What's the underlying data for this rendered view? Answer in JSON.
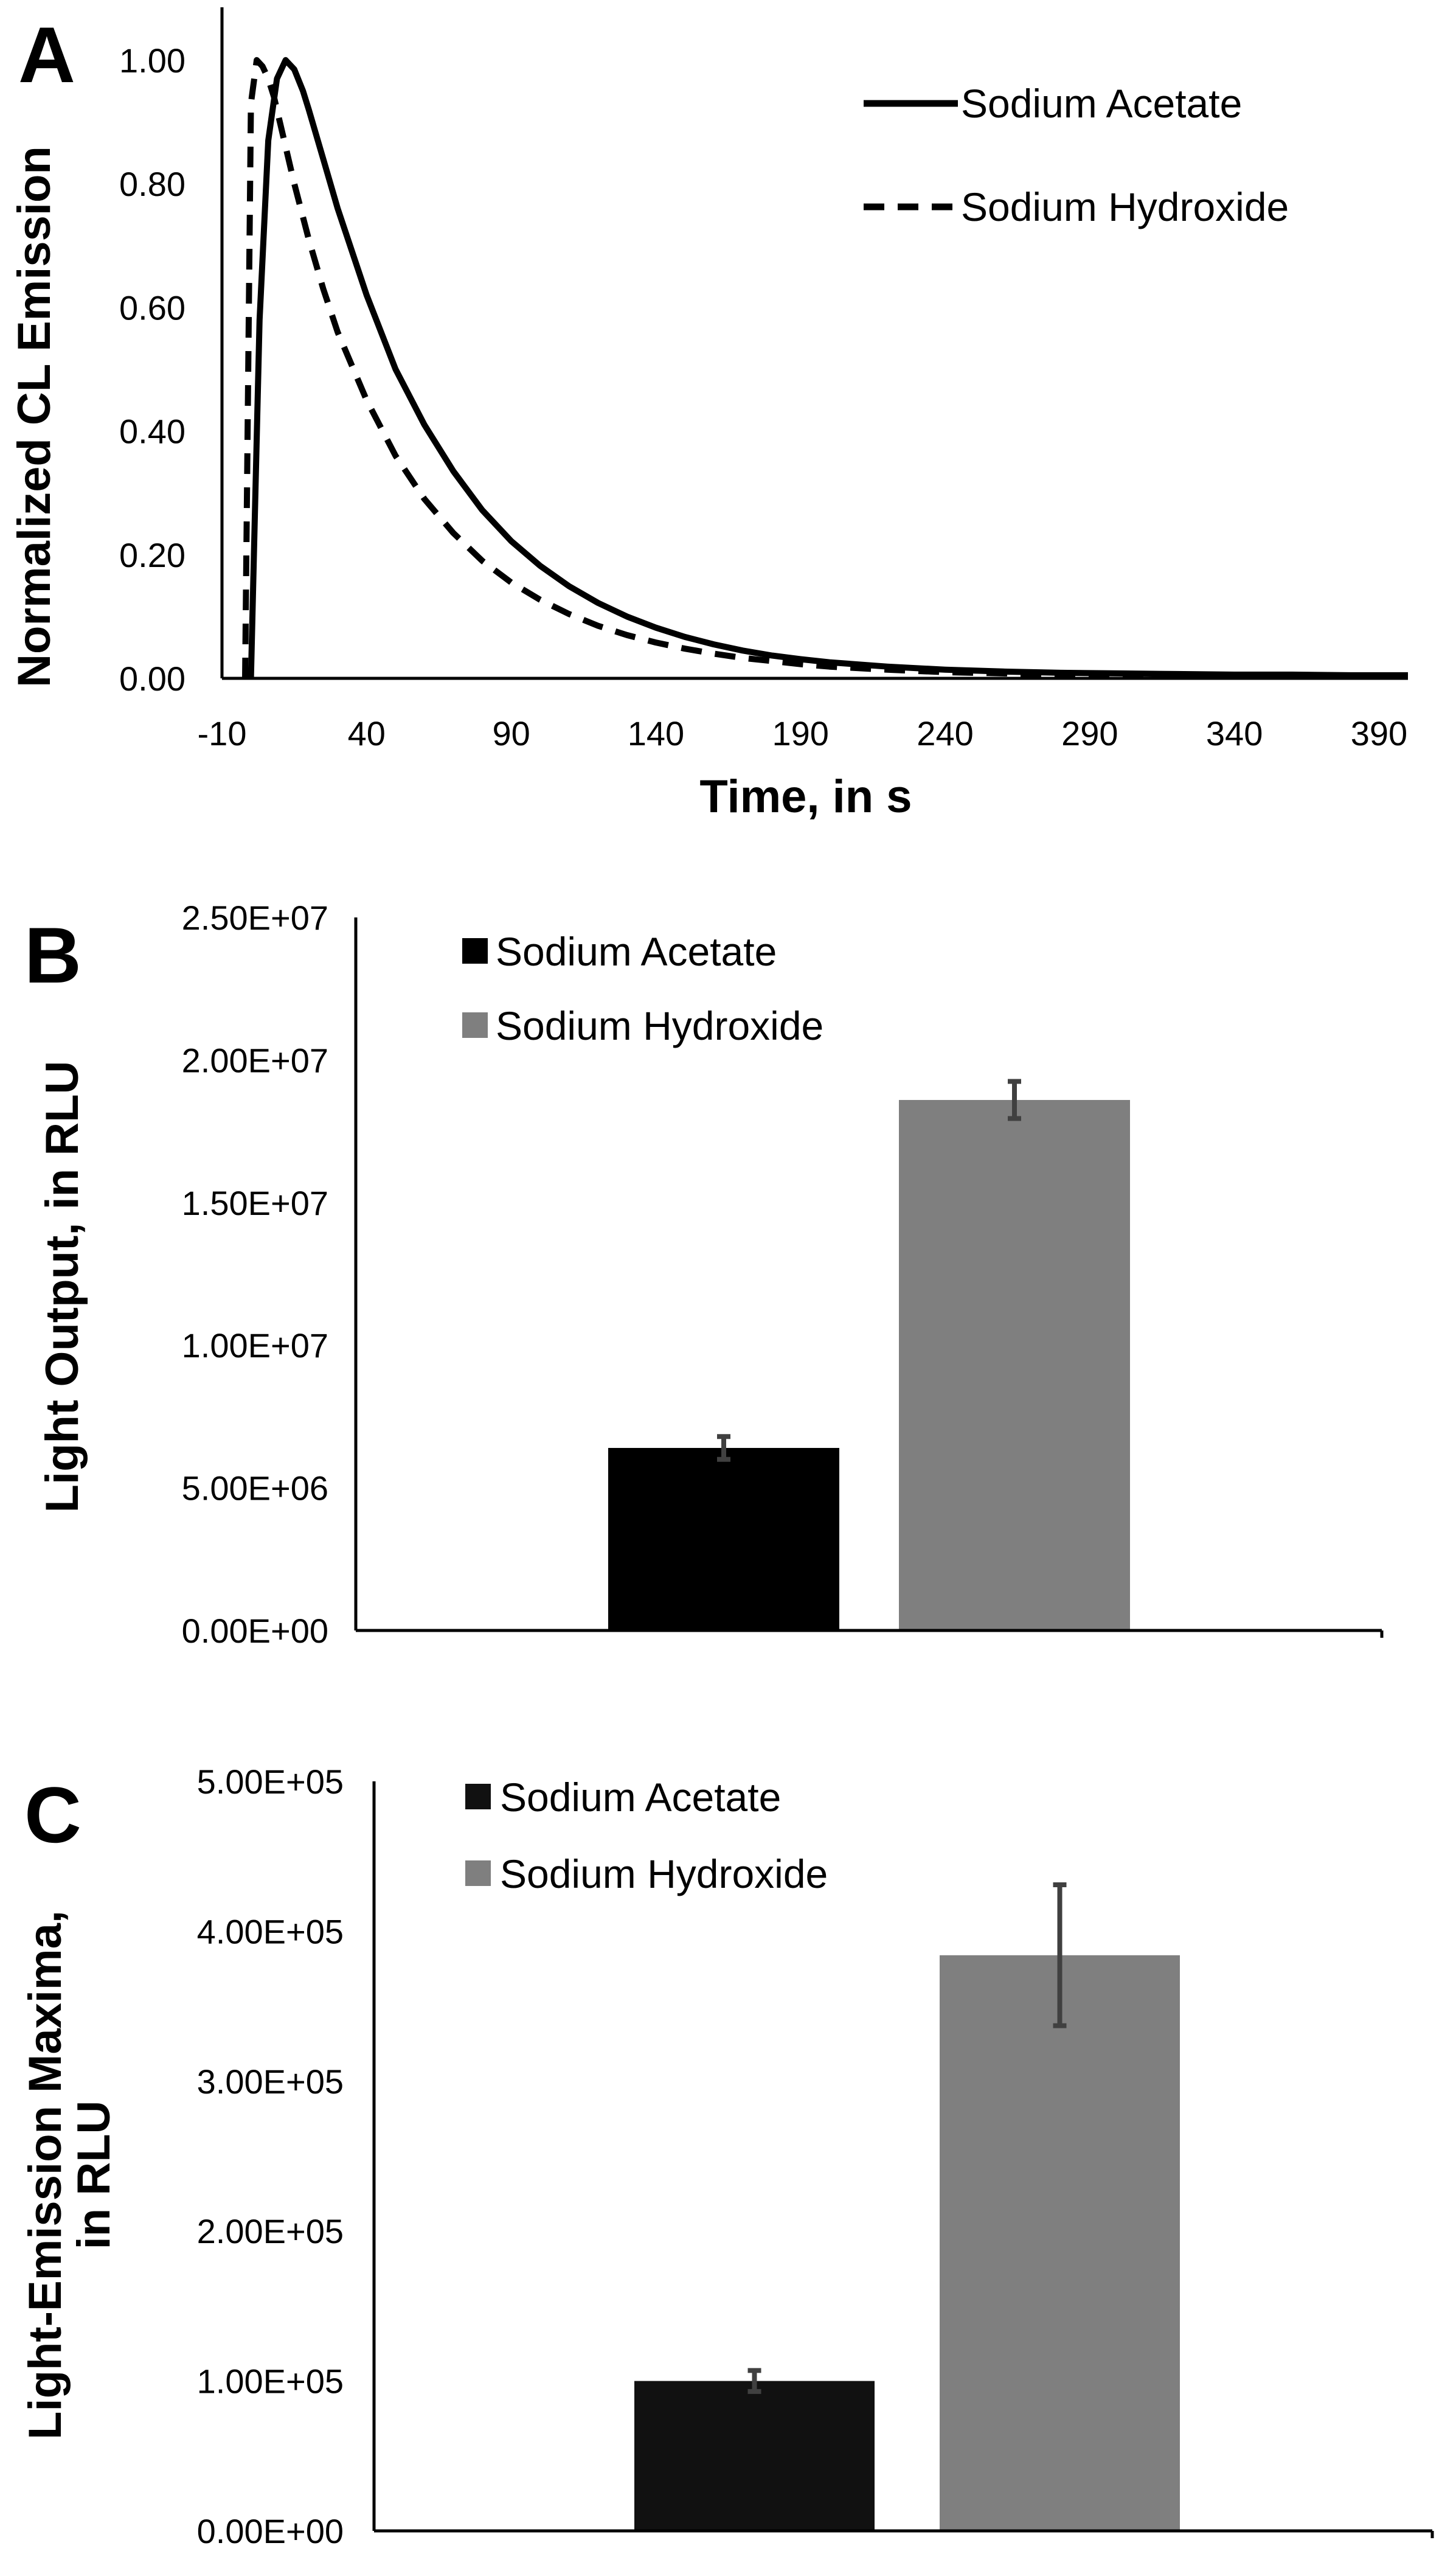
{
  "chart_data": [
    {
      "panel": "A",
      "type": "line",
      "title": "",
      "xlabel": "Time, in s",
      "ylabel": "Normalized CL Emission",
      "xlim": [
        -10,
        400
      ],
      "ylim": [
        0,
        1.05
      ],
      "x_ticks": [
        -10,
        40,
        90,
        140,
        190,
        240,
        290,
        340,
        390
      ],
      "y_ticks": [
        0,
        0.2,
        0.4,
        0.6,
        0.8,
        1.0
      ],
      "x_tick_labels": [
        "-10",
        "40",
        "90",
        "140",
        "190",
        "240",
        "290",
        "340",
        "390"
      ],
      "y_tick_labels": [
        "0.00",
        "0.20",
        "0.40",
        "0.60",
        "0.80",
        "1.00"
      ],
      "legend_position": "top-right",
      "series": [
        {
          "name": "Sodium Acetate",
          "style": "solid",
          "x": [
            0,
            3,
            6,
            9,
            12,
            15,
            18,
            20,
            25,
            30,
            40,
            50,
            60,
            70,
            80,
            90,
            100,
            110,
            120,
            130,
            140,
            150,
            160,
            170,
            180,
            190,
            200,
            220,
            240,
            260,
            280,
            300,
            320,
            340,
            360,
            380,
            400
          ],
          "y": [
            0.0,
            0.58,
            0.87,
            0.97,
            1.0,
            0.985,
            0.95,
            0.92,
            0.84,
            0.76,
            0.62,
            0.5,
            0.41,
            0.335,
            0.272,
            0.222,
            0.182,
            0.149,
            0.122,
            0.1,
            0.082,
            0.067,
            0.055,
            0.045,
            0.037,
            0.031,
            0.026,
            0.019,
            0.014,
            0.011,
            0.009,
            0.008,
            0.007,
            0.006,
            0.006,
            0.005,
            0.005
          ]
        },
        {
          "name": "Sodium Hydroxide",
          "style": "dashed",
          "x": [
            -2,
            0,
            2,
            4,
            6,
            8,
            10,
            15,
            20,
            25,
            30,
            40,
            50,
            60,
            70,
            80,
            90,
            100,
            110,
            120,
            130,
            140,
            150,
            160,
            170,
            180,
            190,
            200,
            220,
            240,
            260,
            280,
            300,
            350,
            400
          ],
          "y": [
            0.0,
            0.93,
            1.0,
            0.99,
            0.97,
            0.94,
            0.9,
            0.8,
            0.71,
            0.63,
            0.56,
            0.45,
            0.36,
            0.29,
            0.235,
            0.19,
            0.155,
            0.127,
            0.104,
            0.085,
            0.07,
            0.058,
            0.048,
            0.04,
            0.033,
            0.028,
            0.023,
            0.019,
            0.014,
            0.01,
            0.008,
            0.006,
            0.005,
            0.004,
            0.003
          ]
        }
      ]
    },
    {
      "panel": "B",
      "type": "bar",
      "title": "",
      "xlabel": "",
      "ylabel": "Light Output, in RLU",
      "ylim": [
        0,
        25000000
      ],
      "y_ticks": [
        0,
        5000000,
        10000000,
        15000000,
        20000000,
        25000000
      ],
      "y_tick_labels": [
        "0.00E+00",
        "5.00E+06",
        "1.00E+07",
        "1.50E+07",
        "2.00E+07",
        "2.50E+07"
      ],
      "categories": [
        "Sodium Acetate",
        "Sodium Hydroxide"
      ],
      "values": [
        6400000,
        18600000
      ],
      "errors": [
        400000,
        650000
      ],
      "colors": [
        "#000000",
        "#7f7f7f"
      ],
      "legend_position": "top-left"
    },
    {
      "panel": "C",
      "type": "bar",
      "title": "",
      "xlabel": "",
      "ylabel": "Light-Emission Maxima, in RLU",
      "ylabel_lines": [
        "Light-Emission Maxima,",
        "in RLU"
      ],
      "ylim": [
        0,
        500000
      ],
      "y_ticks": [
        0,
        100000,
        200000,
        300000,
        400000,
        500000
      ],
      "y_tick_labels": [
        "0.00E+00",
        "1.00E+05",
        "2.00E+05",
        "3.00E+05",
        "4.00E+05",
        "5.00E+05"
      ],
      "categories": [
        "Sodium Acetate",
        "Sodium Hydroxide"
      ],
      "values": [
        100000,
        384000
      ],
      "errors": [
        7000,
        47000
      ],
      "colors": [
        "#111111",
        "#7f7f7f"
      ],
      "legend_position": "top-left"
    }
  ]
}
